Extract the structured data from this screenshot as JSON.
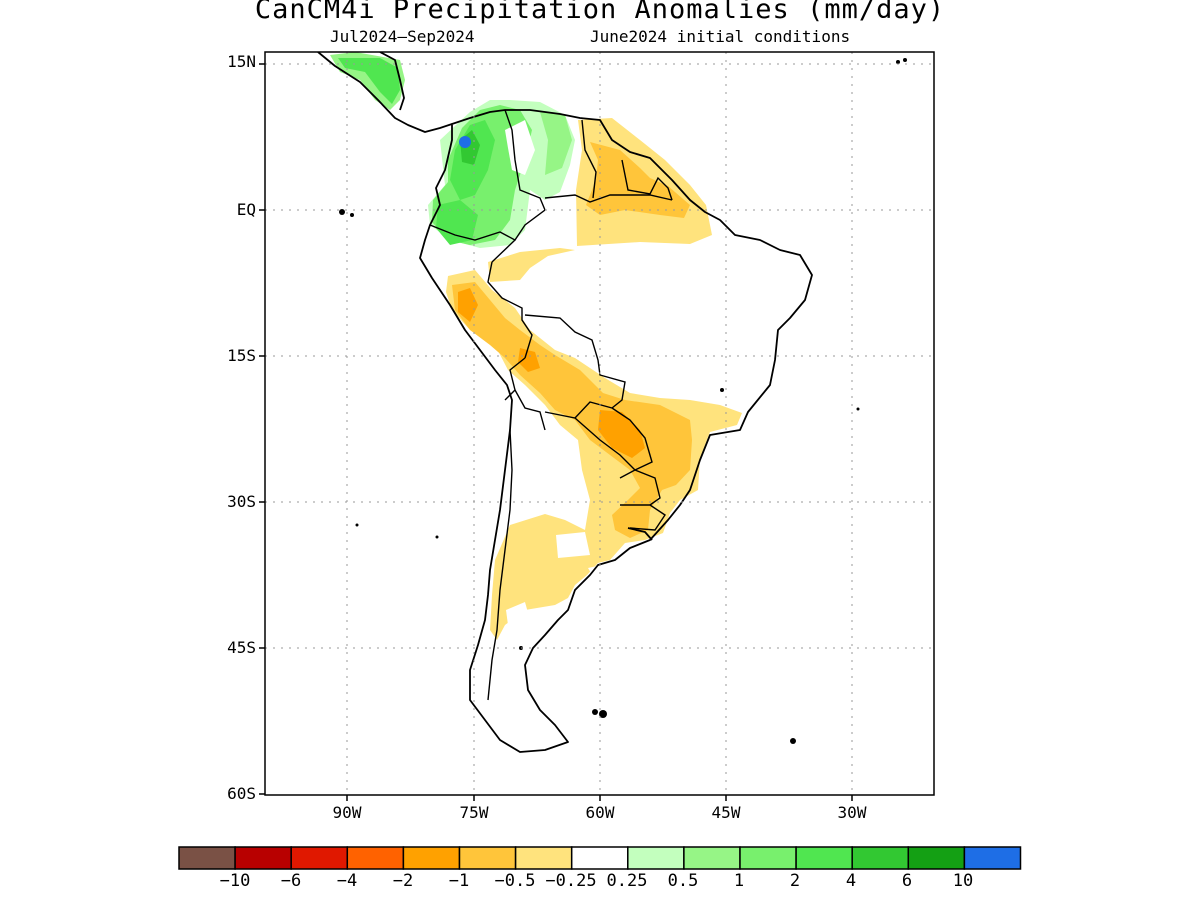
{
  "title": "CanCM4i Precipitation Anomalies (mm/day)",
  "subtitle_left": "Jul2024–Sep2024",
  "subtitle_right": "June2024 initial conditions",
  "lat_labels": [
    "15N",
    "EQ",
    "15S",
    "30S",
    "45S",
    "60S"
  ],
  "lon_labels": [
    "90W",
    "75W",
    "60W",
    "45W",
    "30W"
  ],
  "colorbar": {
    "colors": [
      "#7a5145",
      "#b80000",
      "#e01800",
      "#ff6200",
      "#ffa100",
      "#ffc53a",
      "#ffe37d",
      "#ffffff",
      "#c3ffbe",
      "#96f586",
      "#78f06d",
      "#50e650",
      "#32c832",
      "#14a014",
      "#1e6ee6"
    ],
    "labels": [
      "−10",
      "−6",
      "−4",
      "−2",
      "−1",
      "−0.5",
      "−0.25",
      "0.25",
      "0.5",
      "1",
      "2",
      "4",
      "6",
      "10"
    ]
  }
}
